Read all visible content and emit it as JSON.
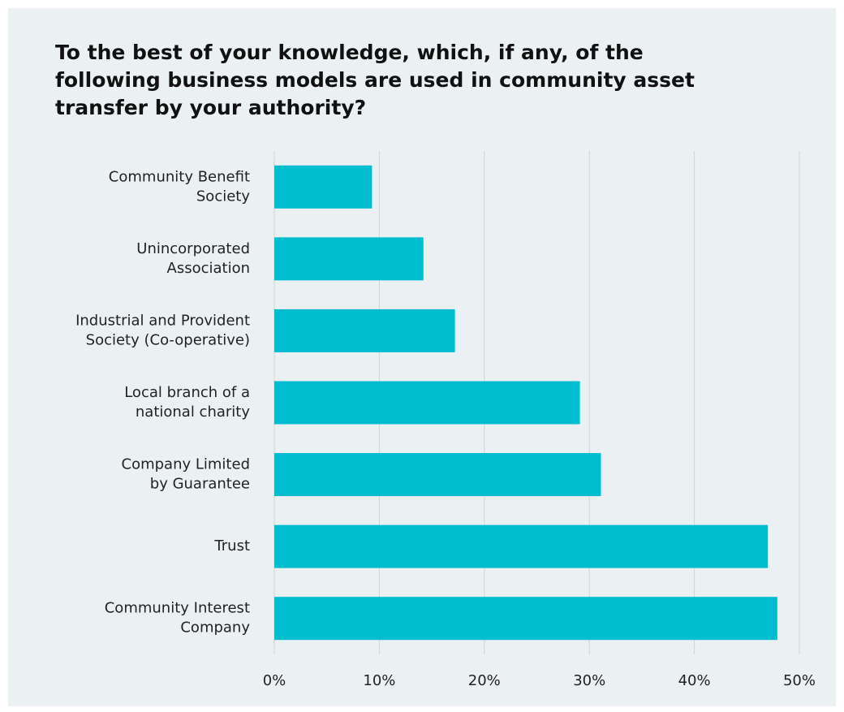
{
  "chart_data": {
    "type": "bar",
    "orientation": "horizontal",
    "title": "To the best of your knowledge, which, if any, of the following business models are used in community asset transfer by your authority?",
    "categories": [
      "Community Benefit\nSociety",
      "Unincorporated\nAssociation",
      "Industrial and Provident\nSociety (Co-operative)",
      "Local branch of a\nnational charity",
      "Company Limited\nby Guarantee",
      "Trust",
      "Community Interest\nCompany"
    ],
    "values": [
      9.3,
      14.2,
      17.2,
      29.1,
      31.1,
      47.0,
      47.9
    ],
    "color": "#00bccf",
    "xlim": [
      0,
      50
    ],
    "xticks": [
      {
        "value": 0,
        "label": "0%"
      },
      {
        "value": 10,
        "label": "10%"
      },
      {
        "value": 20,
        "label": "20%"
      },
      {
        "value": 30,
        "label": "30%"
      },
      {
        "value": 40,
        "label": "40%"
      },
      {
        "value": 50,
        "label": "50%"
      }
    ],
    "grid": true
  }
}
